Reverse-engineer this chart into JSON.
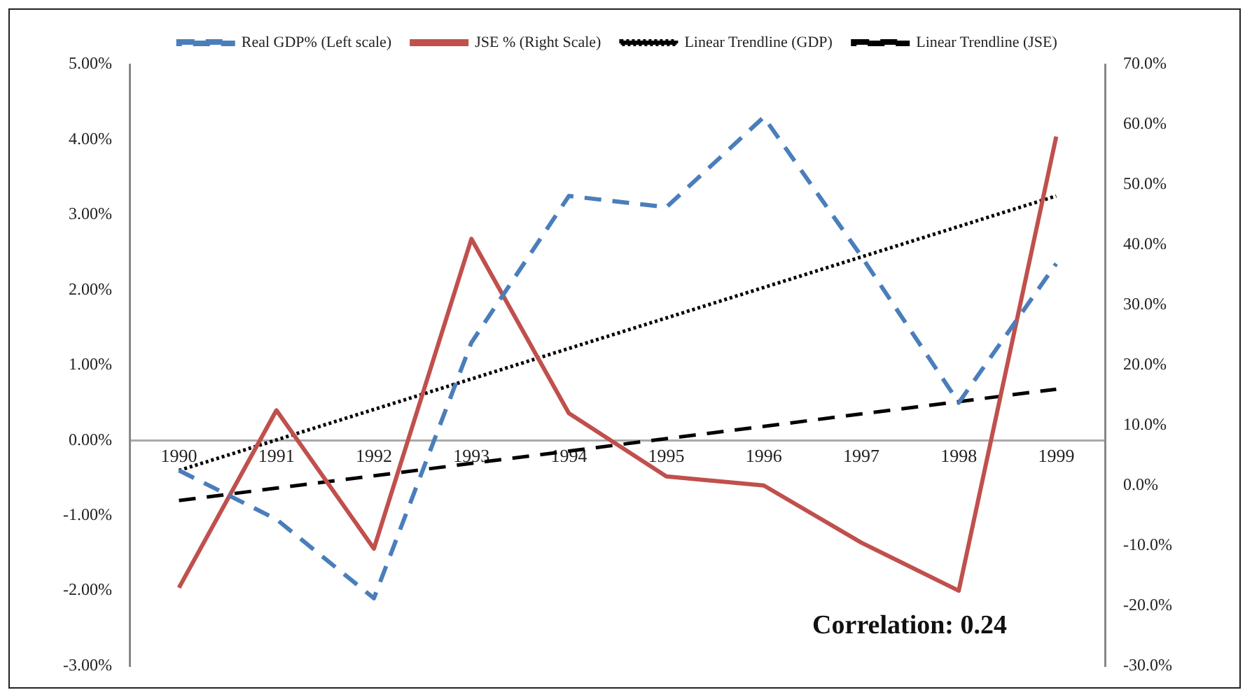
{
  "chart_data": {
    "type": "line",
    "categories": [
      "1990",
      "1991",
      "1992",
      "1993",
      "1994",
      "1995",
      "1996",
      "1997",
      "1998",
      "1999"
    ],
    "series": [
      {
        "name": "Real GDP% (Left scale)",
        "color": "#4a7ebb",
        "line_style": "dashed",
        "values": [
          -0.4,
          -1.05,
          -2.1,
          1.3,
          3.25,
          3.1,
          4.3,
          2.45,
          0.5,
          2.35
        ]
      },
      {
        "name": "JSE % (Right Scale)",
        "color": "#c0504d",
        "line_style": "solid",
        "axis": "y2",
        "values": [
          -17,
          12.5,
          -10.5,
          41,
          12,
          1.5,
          0,
          -9.5,
          -17.5,
          58
        ]
      },
      {
        "name": "Linear Trendline (GDP)",
        "color": "#000000",
        "line_style": "dotted",
        "values": [
          -0.4,
          null,
          null,
          null,
          null,
          null,
          null,
          null,
          null,
          3.25
        ]
      },
      {
        "name": "Linear Trendline (JSE)",
        "color": "#000000",
        "line_style": "dashed",
        "axis": "y2",
        "values": [
          -2.5,
          null,
          null,
          null,
          null,
          null,
          null,
          null,
          null,
          16
        ]
      }
    ],
    "ylim": [
      -3,
      5
    ],
    "yticks": [
      {
        "value": -3,
        "label": "-3.00%"
      },
      {
        "value": -2,
        "label": "-2.00%"
      },
      {
        "value": -1,
        "label": "-1.00%"
      },
      {
        "value": 0,
        "label": "0.00%"
      },
      {
        "value": 1,
        "label": "1.00%"
      },
      {
        "value": 2,
        "label": "2.00%"
      },
      {
        "value": 3,
        "label": "3.00%"
      },
      {
        "value": 4,
        "label": "4.00%"
      },
      {
        "value": 5,
        "label": "5.00%"
      }
    ],
    "y2lim": [
      -30,
      70
    ],
    "y2ticks": [
      {
        "value": -30,
        "label": "-30.0%"
      },
      {
        "value": -20,
        "label": "-20.0%"
      },
      {
        "value": -10,
        "label": "-10.0%"
      },
      {
        "value": 0,
        "label": "0.0%"
      },
      {
        "value": 10,
        "label": "10.0%"
      },
      {
        "value": 20,
        "label": "20.0%"
      },
      {
        "value": 30,
        "label": "30.0%"
      },
      {
        "value": 40,
        "label": "40.0%"
      },
      {
        "value": 50,
        "label": "50.0%"
      },
      {
        "value": 60,
        "label": "60.0%"
      },
      {
        "value": 70,
        "label": "70.0%"
      }
    ],
    "annotations": [
      "Correlation: 0.24"
    ],
    "legend": "top",
    "grid": false,
    "marker": "none"
  }
}
